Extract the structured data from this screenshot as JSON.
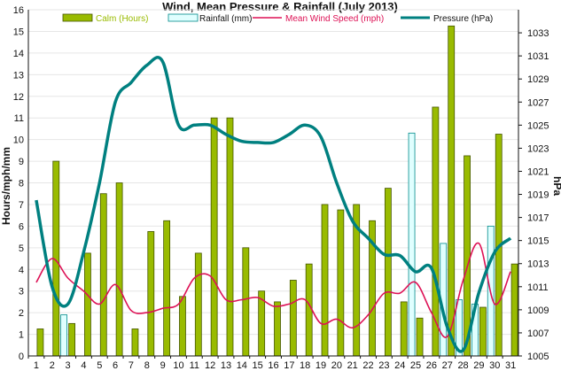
{
  "chart_data": {
    "type": "bar",
    "title": "Wind, Mean Pressure & Rainfall (July 2013)",
    "ylabel": "Hours/mph/mm",
    "y2label": "hPa",
    "ylim": [
      0,
      16
    ],
    "y2lim": [
      1005,
      1035
    ],
    "y_ticks": [
      "0",
      "1",
      "2",
      "3",
      "4",
      "5",
      "6",
      "7",
      "8",
      "9",
      "10",
      "11",
      "12",
      "13",
      "14",
      "15",
      "16"
    ],
    "y2_ticks": [
      "1005",
      "1007",
      "1009",
      "1011",
      "1013",
      "1015",
      "1017",
      "1019",
      "1021",
      "1023",
      "1025",
      "1027",
      "1029",
      "1031",
      "1033"
    ],
    "categories": [
      "1",
      "2",
      "3",
      "4",
      "5",
      "6",
      "7",
      "8",
      "9",
      "10",
      "11",
      "12",
      "13",
      "14",
      "15",
      "16",
      "17",
      "18",
      "19",
      "20",
      "21",
      "22",
      "23",
      "24",
      "25",
      "26",
      "27",
      "28",
      "29",
      "30",
      "31"
    ],
    "legend_position": "top",
    "colors": {
      "calm": "#99bb00",
      "rainfall": "#e0ffff",
      "wind": "#dd1155",
      "pressure": "#008080"
    },
    "series": [
      {
        "name": "Calm (Hours)",
        "kind": "bar",
        "axis": "left",
        "values": [
          1.25,
          9,
          1.5,
          4.75,
          7.5,
          8,
          1.25,
          5.75,
          6.25,
          2.75,
          4.75,
          11,
          11,
          5,
          3,
          2.5,
          3.5,
          4.25,
          7,
          6.75,
          7,
          6.25,
          7.75,
          2.5,
          1.75,
          11.5,
          15.25,
          9.25,
          2.25,
          10.25,
          4.25
        ]
      },
      {
        "name": "Rainfall (mm)",
        "kind": "bar",
        "axis": "left",
        "values": [
          0,
          0,
          1.9,
          0,
          0,
          0,
          0,
          0,
          0,
          0,
          0,
          0,
          0,
          0,
          0,
          0,
          0,
          0,
          0,
          0,
          0,
          0,
          0,
          0,
          10.3,
          0,
          5.2,
          2.6,
          2.4,
          6,
          0
        ]
      },
      {
        "name": "Mean Wind Speed (mph)",
        "kind": "line",
        "axis": "left",
        "values": [
          3.4,
          4.5,
          3.6,
          3.0,
          2.4,
          3.3,
          2.1,
          2.0,
          2.2,
          2.4,
          3.6,
          3.7,
          2.6,
          2.6,
          2.7,
          2.3,
          2.4,
          2.6,
          1.5,
          1.7,
          1.3,
          1.9,
          2.9,
          2.9,
          3.4,
          2.0,
          0.9,
          3.5,
          5.2,
          2.4,
          3.9
        ]
      },
      {
        "name": "Pressure (hPa)",
        "kind": "line",
        "axis": "right",
        "values": [
          1018.5,
          1011,
          1009.5,
          1014,
          1020,
          1027,
          1028.7,
          1030.2,
          1030.5,
          1025,
          1025,
          1025,
          1024.2,
          1023.6,
          1023.5,
          1023.5,
          1024.2,
          1025,
          1024,
          1020,
          1016.7,
          1015.2,
          1013.8,
          1013.7,
          1012.3,
          1012.6,
          1007.5,
          1005.5,
          1010.5,
          1014,
          1015.2
        ]
      }
    ]
  }
}
